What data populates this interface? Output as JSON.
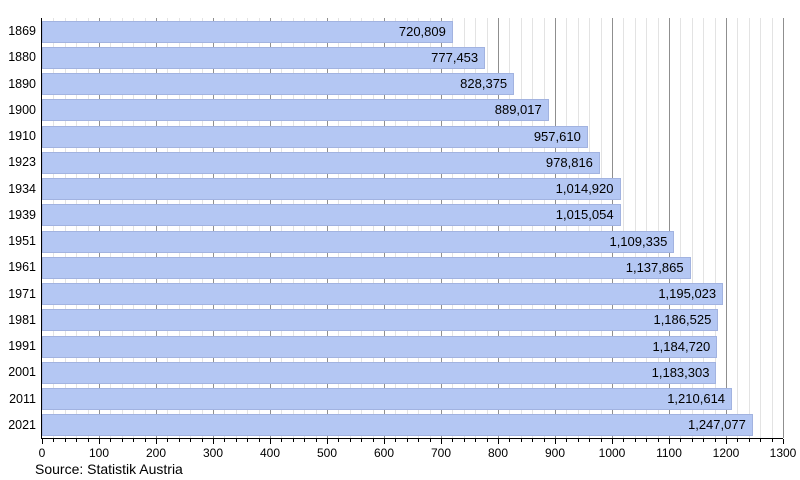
{
  "chart_data": {
    "type": "bar",
    "orientation": "horizontal",
    "title": "",
    "xlabel": "",
    "ylabel": "",
    "categories": [
      "1869",
      "1880",
      "1890",
      "1900",
      "1910",
      "1923",
      "1934",
      "1939",
      "1951",
      "1961",
      "1971",
      "1981",
      "1991",
      "2001",
      "2011",
      "2021"
    ],
    "values": [
      720809,
      777453,
      828375,
      889017,
      957610,
      978816,
      1014920,
      1015054,
      1109335,
      1137865,
      1195023,
      1186525,
      1184720,
      1183303,
      1210614,
      1247077
    ],
    "value_labels": [
      "720,809",
      "777,453",
      "828,375",
      "889,017",
      "957,610",
      "978,816",
      "1,014,920",
      "1,015,054",
      "1,109,335",
      "1,137,865",
      "1,195,023",
      "1,186,525",
      "1,184,720",
      "1,183,303",
      "1,210,614",
      "1,247,077"
    ],
    "xlim": [
      0,
      1300
    ],
    "x_unit_divisor": 1000,
    "x_major_ticks": [
      0,
      100,
      200,
      300,
      400,
      500,
      600,
      700,
      800,
      900,
      1000,
      1100,
      1200,
      1300
    ],
    "x_minor_step": 20,
    "grid": "vertical",
    "legend": "none"
  },
  "footer": {
    "source": "Source: Statistik Austria"
  },
  "colors": {
    "bar_fill": "#b4c7f3",
    "bar_border": "#a2b3e0",
    "grid_minor": "#e3e3e3",
    "grid_major": "#8f8f8f",
    "axis": "#000000",
    "text": "#000000",
    "background": "#ffffff"
  }
}
